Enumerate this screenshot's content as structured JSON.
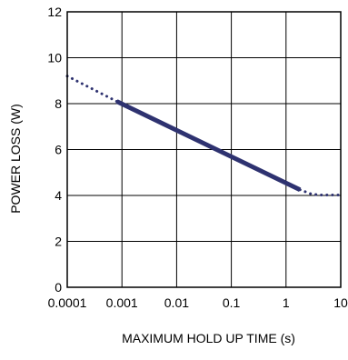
{
  "chart_data": {
    "type": "line",
    "title": "",
    "xlabel": "MAXIMUM HOLD UP TIME (s)",
    "ylabel": "POWER LOSS (W)",
    "x_scale": "log",
    "xlim": [
      0.0001,
      10
    ],
    "ylim": [
      0,
      12
    ],
    "x_ticks": [
      0.0001,
      0.001,
      0.01,
      0.1,
      1,
      10
    ],
    "x_tick_labels": [
      "0.0001",
      "0.001",
      "0.01",
      "0.1",
      "1",
      "10"
    ],
    "y_ticks": [
      0,
      2,
      4,
      6,
      8,
      10,
      12
    ],
    "y_tick_labels": [
      "0",
      "2",
      "4",
      "6",
      "8",
      "10",
      "12"
    ],
    "grid": true,
    "line_color": "#2e3270",
    "series": [
      {
        "style": "dotted",
        "x": [
          0.0001,
          0.0008
        ],
        "y": [
          9.2,
          8.1
        ]
      },
      {
        "style": "solid",
        "x": [
          0.0008,
          1.8
        ],
        "y": [
          8.1,
          4.25
        ]
      },
      {
        "style": "dotted",
        "x": [
          1.8,
          3,
          4.5,
          10
        ],
        "y": [
          4.25,
          4.05,
          4.02,
          4.02
        ]
      }
    ]
  }
}
